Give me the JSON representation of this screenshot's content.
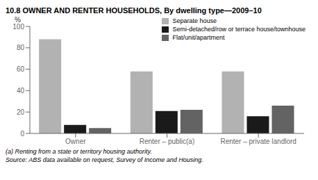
{
  "chart_data": {
    "type": "bar",
    "title": "10.8  OWNER AND RENTER HOUSEHOLDS, By dwelling type—2009–10",
    "ylabel": "%",
    "categories": [
      "Owner",
      "Renter – public(a)",
      "Renter – private landlord"
    ],
    "series": [
      {
        "name": "Separate house",
        "color": "#b2b2b2",
        "values": [
          88,
          58,
          58
        ]
      },
      {
        "name": "Semi-detached/row or terrace house/townhouse",
        "color": "#1a1a1a",
        "values": [
          8,
          21,
          16
        ]
      },
      {
        "name": "Flat/unit/apartment",
        "color": "#636363",
        "values": [
          5,
          22,
          26
        ]
      }
    ],
    "ylim": [
      0,
      100
    ],
    "yticks": [
      0,
      20,
      40,
      60,
      80,
      100
    ],
    "grid": false,
    "legend": "upper right",
    "annotations": [
      "(a) Renting from a state or territory housing authority.",
      "Source: ABS data available on request, Survey of Income and Housing."
    ]
  }
}
